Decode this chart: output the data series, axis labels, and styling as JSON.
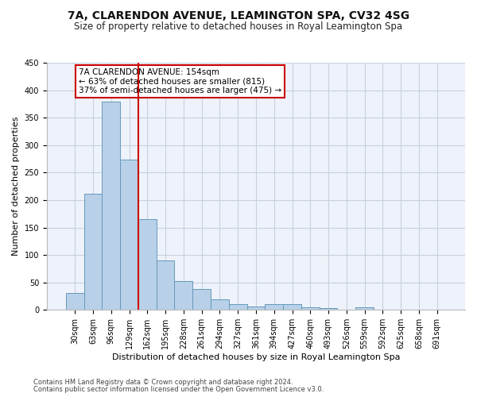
{
  "title": "7A, CLARENDON AVENUE, LEAMINGTON SPA, CV32 4SG",
  "subtitle": "Size of property relative to detached houses in Royal Leamington Spa",
  "xlabel": "Distribution of detached houses by size in Royal Leamington Spa",
  "ylabel": "Number of detached properties",
  "footnote1": "Contains HM Land Registry data © Crown copyright and database right 2024.",
  "footnote2": "Contains public sector information licensed under the Open Government Licence v3.0.",
  "bar_labels": [
    "30sqm",
    "63sqm",
    "96sqm",
    "129sqm",
    "162sqm",
    "195sqm",
    "228sqm",
    "261sqm",
    "294sqm",
    "327sqm",
    "361sqm",
    "394sqm",
    "427sqm",
    "460sqm",
    "493sqm",
    "526sqm",
    "559sqm",
    "592sqm",
    "625sqm",
    "658sqm",
    "691sqm"
  ],
  "bar_values": [
    31,
    211,
    379,
    274,
    165,
    90,
    52,
    38,
    20,
    11,
    6,
    11,
    10,
    5,
    3,
    1,
    5,
    1,
    1,
    1,
    1
  ],
  "bar_color": "#b8d0e8",
  "bar_edge_color": "#6699bb",
  "vline_x": 3.5,
  "vline_color": "#cc0000",
  "annotation_text": "7A CLARENDON AVENUE: 154sqm\n← 63% of detached houses are smaller (815)\n37% of semi-detached houses are larger (475) →",
  "annotation_box_color": "#ffffff",
  "annotation_box_edge": "#cc0000",
  "ylim": [
    0,
    450
  ],
  "yticks": [
    0,
    50,
    100,
    150,
    200,
    250,
    300,
    350,
    400,
    450
  ],
  "grid_color": "#c8d0e0",
  "bg_color": "#eef2fa",
  "title_fontsize": 10,
  "subtitle_fontsize": 8.5,
  "xlabel_fontsize": 8,
  "ylabel_fontsize": 8,
  "tick_fontsize": 7,
  "annotation_fontsize": 7.5
}
